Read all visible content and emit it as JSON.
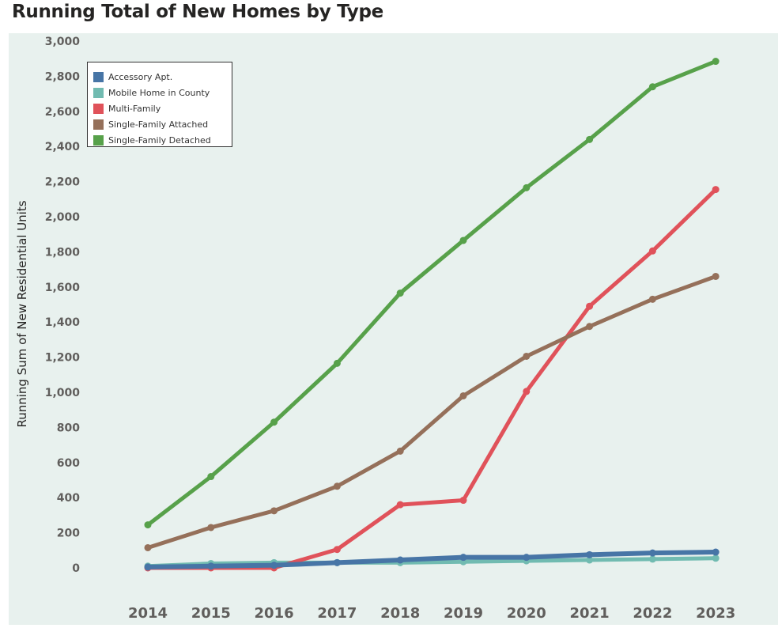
{
  "title": "Running Total of New Homes by Type",
  "chart_data": {
    "type": "line",
    "title": "Running Total of New Homes by Type",
    "xlabel": "",
    "ylabel": "Running Sum of New Residential Units",
    "x": [
      "2014",
      "2015",
      "2016",
      "2017",
      "2018",
      "2019",
      "2020",
      "2021",
      "2022",
      "2023"
    ],
    "ylim": [
      0,
      3000
    ],
    "yticks": [
      "0",
      "200",
      "400",
      "600",
      "800",
      "1,000",
      "1,200",
      "1,400",
      "1,600",
      "1,800",
      "2,000",
      "2,200",
      "2,400",
      "2,600",
      "2,800",
      "3,000"
    ],
    "grid": false,
    "legend_position": "top-left",
    "series": [
      {
        "name": "Mobile Home in County",
        "color": "#71bbb1",
        "values": [
          10,
          25,
          30,
          30,
          30,
          35,
          40,
          45,
          50,
          55
        ]
      },
      {
        "name": "Multi-Family",
        "color": "#e0525a",
        "values": [
          0,
          0,
          0,
          105,
          360,
          385,
          1005,
          1490,
          1805,
          2155
        ]
      },
      {
        "name": "Single-Family Attached",
        "color": "#95705a",
        "values": [
          115,
          230,
          325,
          465,
          665,
          980,
          1205,
          1375,
          1530,
          1660
        ]
      },
      {
        "name": "Single-Family Detached",
        "color": "#57a14a",
        "values": [
          245,
          520,
          830,
          1165,
          1565,
          1865,
          2165,
          2440,
          2740,
          2885
        ]
      },
      {
        "name": "Accessory Apt.",
        "color": "#4775a6",
        "values": [
          5,
          10,
          15,
          30,
          45,
          60,
          60,
          75,
          85,
          90
        ]
      }
    ],
    "legend_order": [
      "Accessory Apt.",
      "Mobile Home in County",
      "Multi-Family",
      "Single-Family Attached",
      "Single-Family Detached"
    ]
  }
}
